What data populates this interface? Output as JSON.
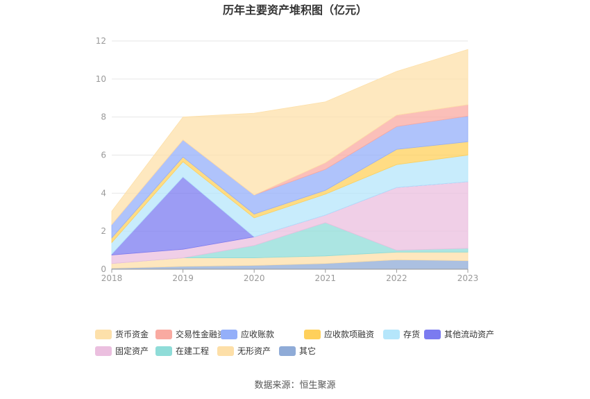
{
  "chart_data": {
    "type": "area",
    "stacked": true,
    "title": "历年主要资产堆积图（亿元）",
    "categories": [
      "2018",
      "2019",
      "2020",
      "2021",
      "2022",
      "2023"
    ],
    "y_ticks": [
      "0",
      "2",
      "4",
      "6",
      "8",
      "10",
      "12"
    ],
    "ylim": [
      0,
      12
    ],
    "grid": true,
    "legend_position": "bottom",
    "series": [
      {
        "name": "其它",
        "color": "#8fabd7",
        "values": [
          0.05,
          0.15,
          0.2,
          0.3,
          0.5,
          0.45
        ]
      },
      {
        "name": "无形资产",
        "color": "#fddfa8",
        "values": [
          0.25,
          0.45,
          0.4,
          0.4,
          0.4,
          0.45
        ]
      },
      {
        "name": "在建工程",
        "color": "#8fdcd8",
        "values": [
          0.0,
          0.0,
          0.65,
          1.75,
          0.1,
          0.2
        ]
      },
      {
        "name": "固定资产",
        "color": "#ebbfdf",
        "values": [
          0.45,
          0.45,
          0.45,
          0.4,
          3.3,
          3.5
        ]
      },
      {
        "name": "其他流动资产",
        "color": "#7b7bf0",
        "values": [
          0.05,
          3.8,
          0.0,
          0.0,
          0.0,
          0.0
        ]
      },
      {
        "name": "存货",
        "color": "#b5e6fb",
        "values": [
          0.6,
          0.8,
          1.0,
          1.1,
          1.2,
          1.4
        ]
      },
      {
        "name": "应收款项融资",
        "color": "#ffd05b",
        "values": [
          0.25,
          0.25,
          0.2,
          0.2,
          0.8,
          0.7
        ]
      },
      {
        "name": "应收账款",
        "color": "#94aff9",
        "values": [
          0.7,
          0.9,
          1.0,
          1.1,
          1.2,
          1.35
        ]
      },
      {
        "name": "交易性金融资产",
        "color": "#f9aaa1",
        "values": [
          0.0,
          0.0,
          0.0,
          0.35,
          0.6,
          0.6
        ]
      },
      {
        "name": "货币资金",
        "color": "#fde0aa",
        "values": [
          0.7,
          1.2,
          4.3,
          3.2,
          2.3,
          2.9
        ]
      }
    ],
    "legend_order": [
      "货币资金",
      "交易性金融资产",
      "应收账款",
      "应收款项融资",
      "存货",
      "其他流动资产",
      "固定资产",
      "在建工程",
      "无形资产",
      "其它"
    ]
  },
  "source_text": "数据来源：恒生聚源"
}
